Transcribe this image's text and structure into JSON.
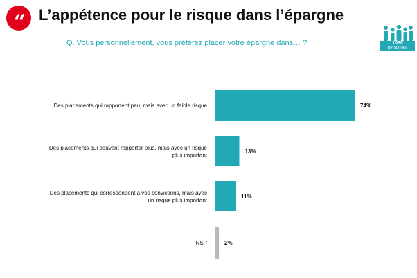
{
  "header": {
    "quote_glyph": "“",
    "title": "L’appétence pour le risque dans l’épargne",
    "question": "Q. Vous personnellement, vous préférez placer votre épargne dans… ?"
  },
  "sample": {
    "count": "1038",
    "unit": "personnes",
    "icon": "people-icon"
  },
  "colors": {
    "accent": "#e2001a",
    "bar": "#23a9b6",
    "bar_nsp": "#b9b9b9",
    "text": "#111111"
  },
  "chart_data": {
    "type": "bar",
    "orientation": "horizontal",
    "categories": [
      [
        "Des placements qui rapportent peu, mais avec un faible risque"
      ],
      [
        "Des placements qui peuvent rapporter plus, mais avec un risque",
        "plus important"
      ],
      [
        "Des placements qui correspondent à vos convictions, mais avec",
        "un risque plus important"
      ],
      [
        "NSP"
      ]
    ],
    "values": [
      74,
      13,
      11,
      2
    ],
    "value_labels": [
      "74%",
      "13%",
      "11%",
      "2%"
    ],
    "unit": "%",
    "xlim": [
      0,
      100
    ],
    "grid": false,
    "legend": "none"
  }
}
